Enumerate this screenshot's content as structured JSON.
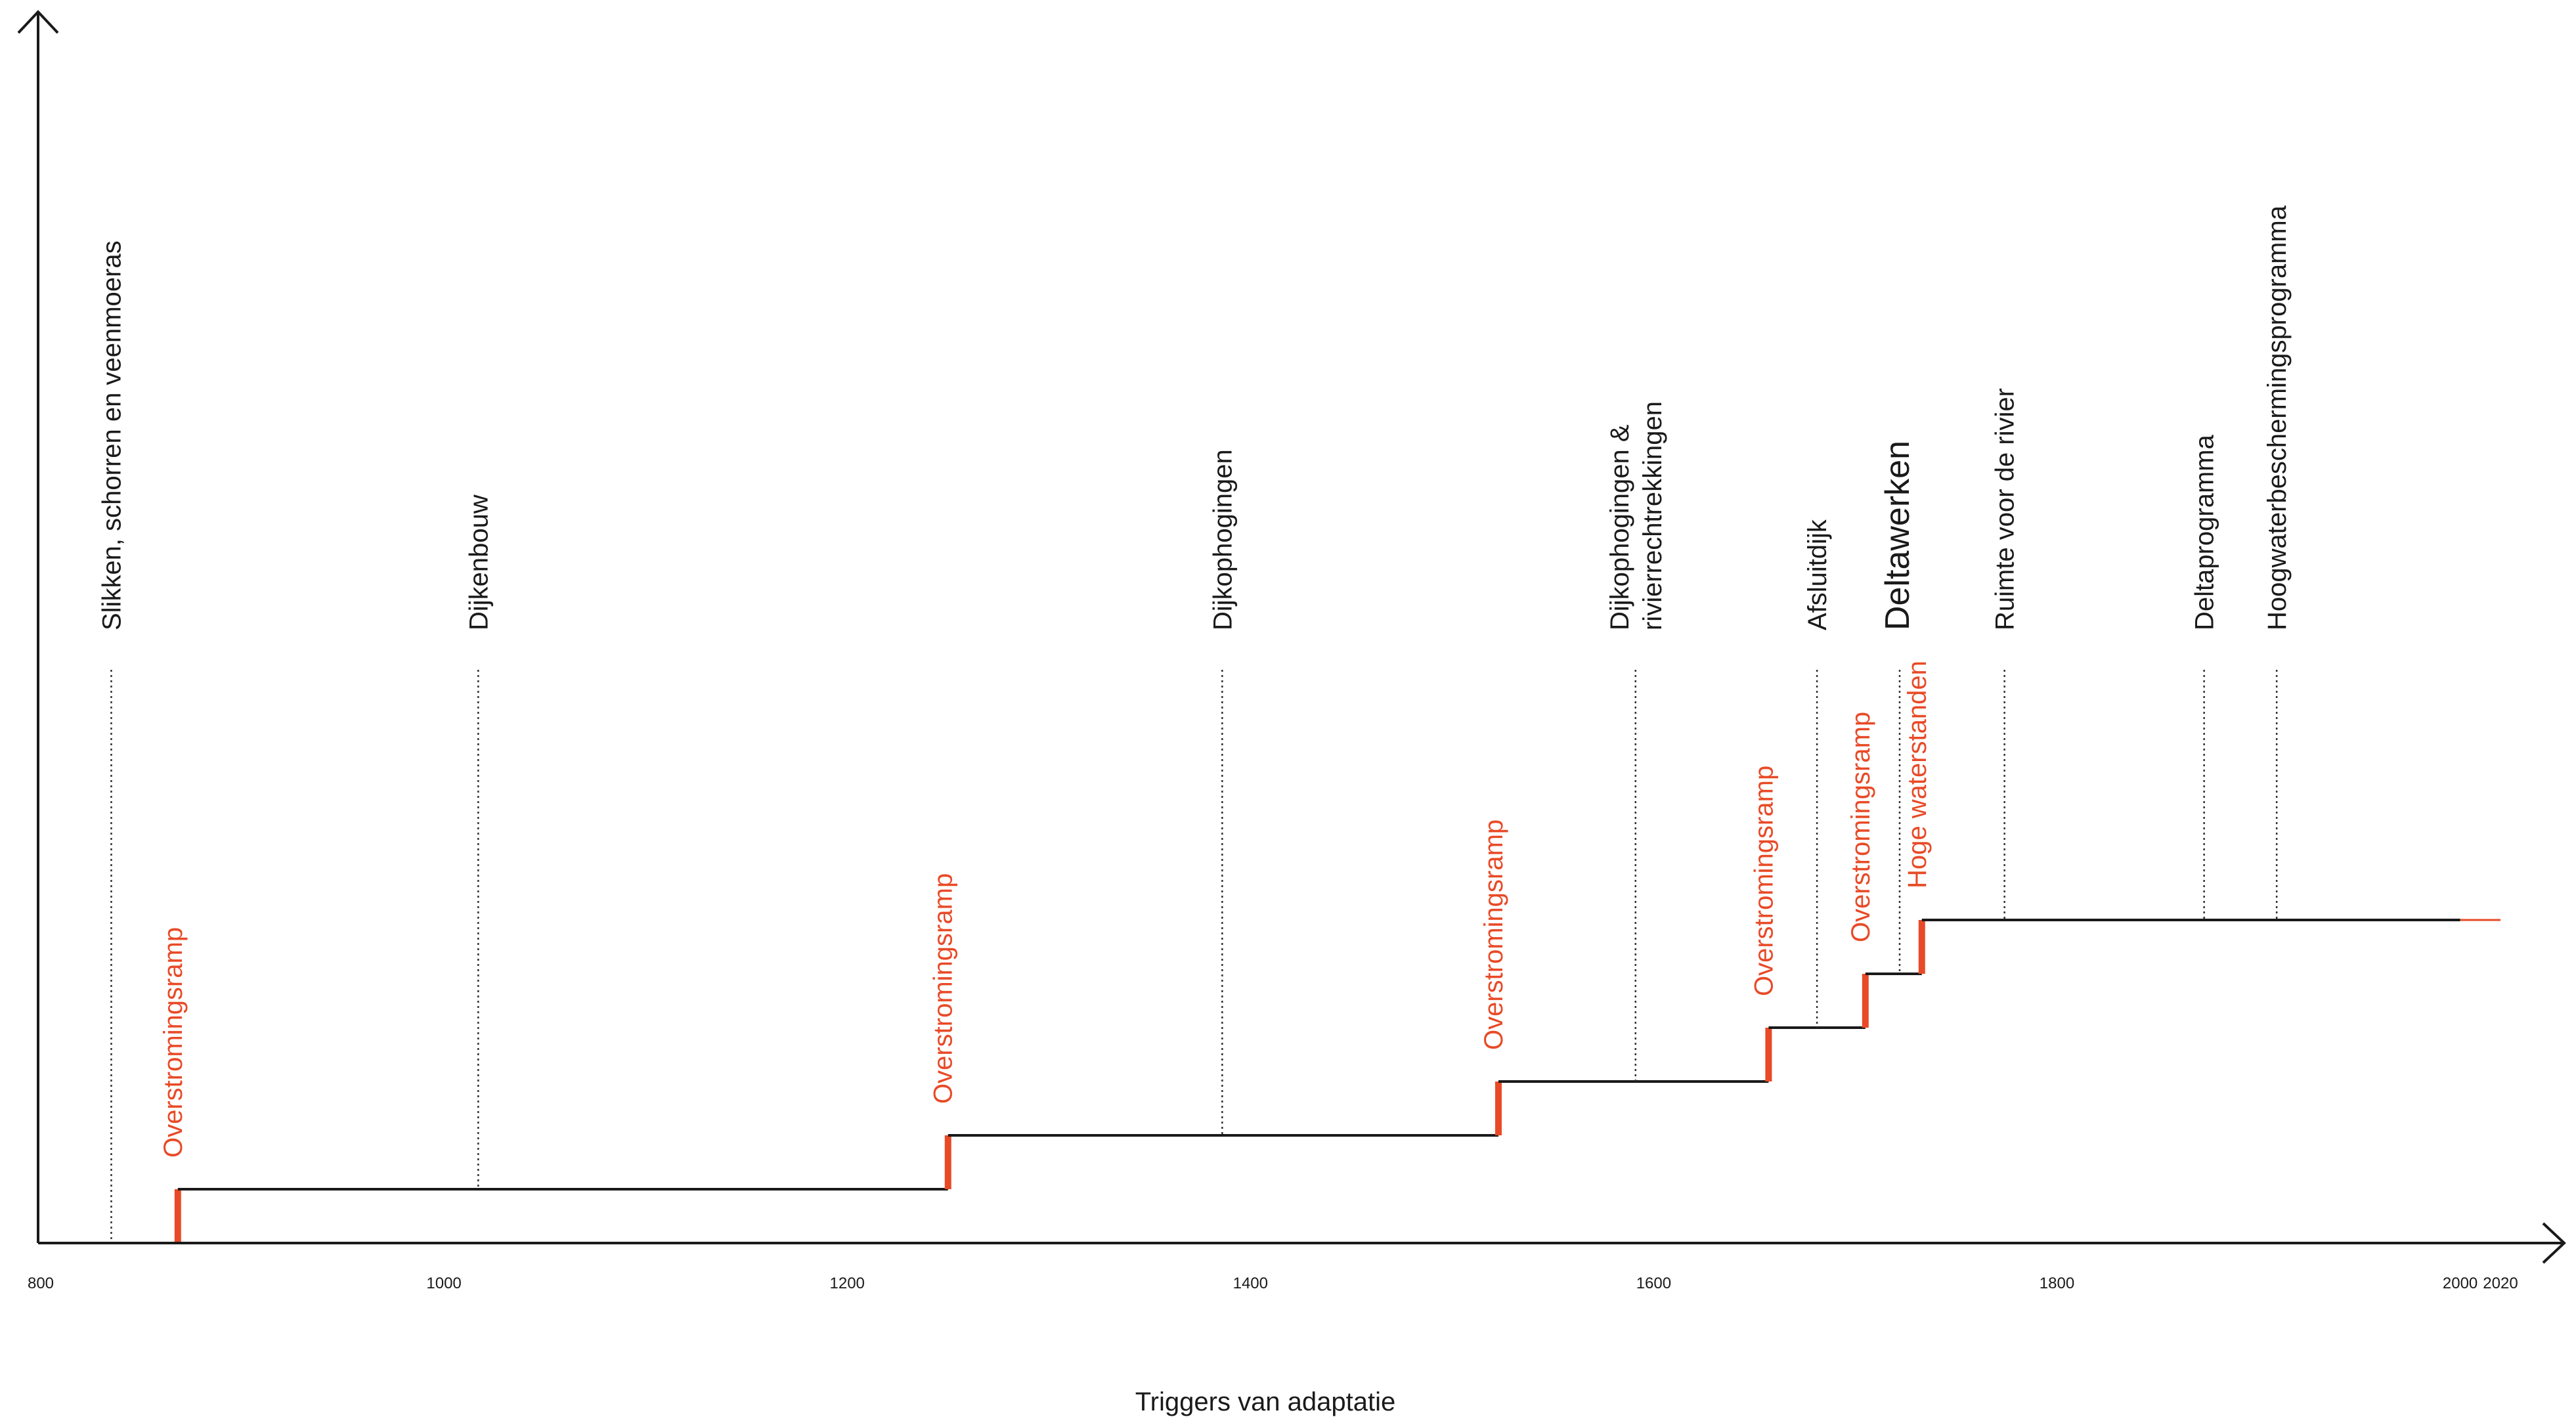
{
  "chart_data": {
    "type": "line",
    "xlabel": "Triggers van adaptatie",
    "xlim": [
      800,
      2020
    ],
    "x_ticks": [
      "800",
      "1000",
      "1200",
      "1400",
      "1600",
      "1800",
      "2000",
      "2020"
    ],
    "colors": {
      "axis": "#1a1a1a",
      "trigger": "#e84a27",
      "guide": "#333333"
    },
    "steps": [
      {
        "x": 868,
        "from": 0,
        "to": 1
      },
      {
        "x": 1250,
        "from": 1,
        "to": 2
      },
      {
        "x": 1523,
        "from": 2,
        "to": 3
      },
      {
        "x": 1657,
        "from": 3,
        "to": 4
      },
      {
        "x": 1705,
        "from": 4,
        "to": 5
      },
      {
        "x": 1733,
        "from": 5,
        "to": 6
      }
    ],
    "line_end_x": 2000,
    "triggers": [
      {
        "x": 868,
        "label": "Overstromingsramp"
      },
      {
        "x": 1250,
        "label": "Overstromingsramp"
      },
      {
        "x": 1523,
        "label": "Overstromingsramp"
      },
      {
        "x": 1657,
        "label": "Overstromingsramp"
      },
      {
        "x": 1705,
        "label": "Overstromingsramp"
      },
      {
        "x": 1733,
        "label": "Hoge waterstanden"
      }
    ],
    "measures": [
      {
        "x": 835,
        "lines": [
          "Slikken, schorren en veenmoeras"
        ]
      },
      {
        "x": 1017,
        "lines": [
          "Dijkenbouw"
        ]
      },
      {
        "x": 1386,
        "lines": [
          "Dijkophogingen"
        ]
      },
      {
        "x": 1591,
        "lines": [
          "Dijkophogingen &",
          "rivierrechtrekkingen"
        ]
      },
      {
        "x": 1681,
        "lines": [
          "Afsluitdijk"
        ]
      },
      {
        "x": 1722,
        "lines": [
          "Deltawerken"
        ],
        "emphasis": true
      },
      {
        "x": 1774,
        "lines": [
          "Ruimte voor de rivier"
        ]
      },
      {
        "x": 1873,
        "lines": [
          "Deltaprogramma"
        ]
      },
      {
        "x": 1909,
        "lines": [
          "Hoogwaterbeschermingsprogramma"
        ]
      }
    ]
  }
}
